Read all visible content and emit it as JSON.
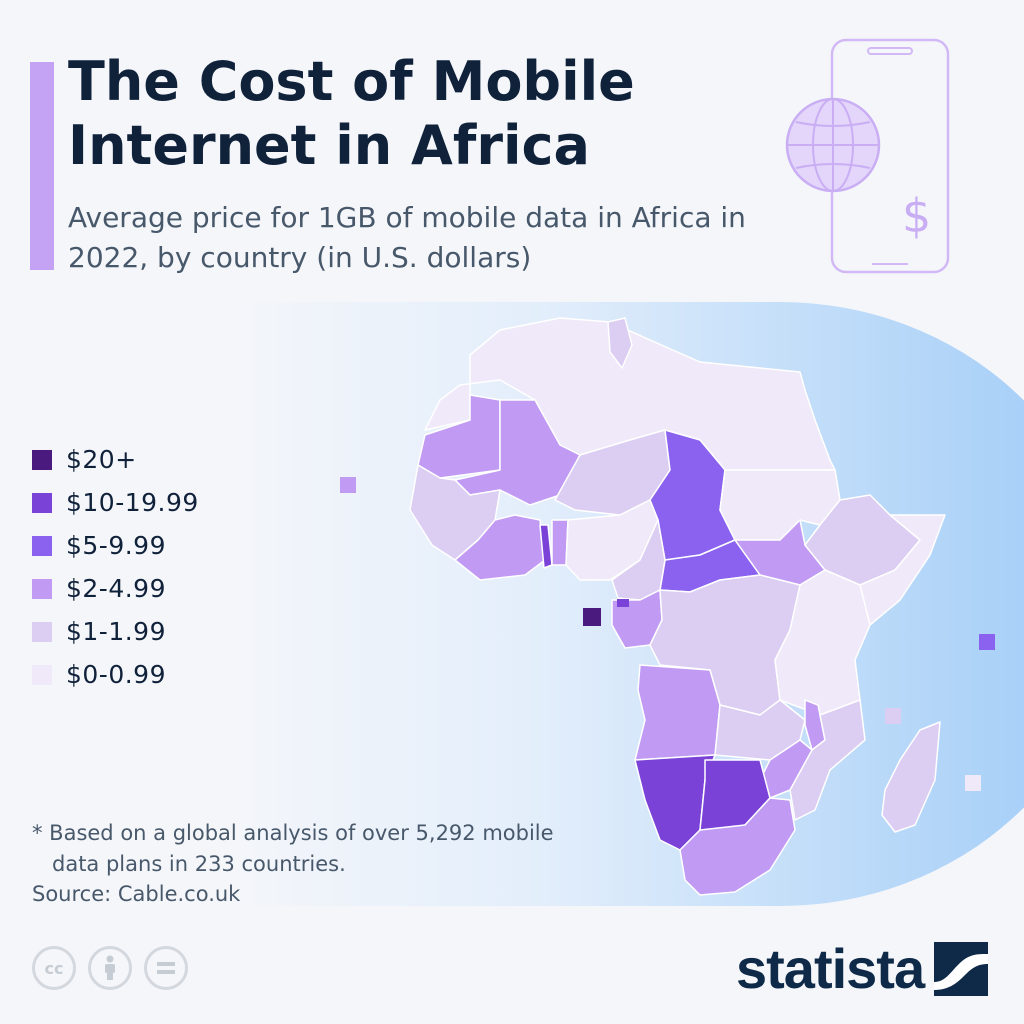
{
  "header": {
    "title": "The Cost of Mobile Internet in Africa",
    "subtitle": "Average price for 1GB of mobile data in Africa in 2022, by country (in U.S. dollars)"
  },
  "colors": {
    "c20plus": "#4a1a7e",
    "c10_19": "#7b42d8",
    "c5_9": "#8a62ef",
    "c2_4": "#c19af4",
    "c1_1": "#dccdf3",
    "c0_0": "#efe9f9",
    "accent": "#c4a3f5",
    "title": "#10213a",
    "brand": "#0f2a49"
  },
  "legend": [
    {
      "label": "$20+",
      "color": "#4a1a7e"
    },
    {
      "label": "$10-19.99",
      "color": "#7b42d8"
    },
    {
      "label": "$5-9.99",
      "color": "#8a62ef"
    },
    {
      "label": "$2-4.99",
      "color": "#c19af4"
    },
    {
      "label": "$1-1.99",
      "color": "#dccdf3"
    },
    {
      "label": "$0-0.99",
      "color": "#efe9f9"
    }
  ],
  "map": {
    "regions": [
      {
        "name": "north-africa",
        "bucket": "$0-0.99"
      },
      {
        "name": "tunisia",
        "bucket": "$1-1.99"
      },
      {
        "name": "mauritania",
        "bucket": "$2-4.99"
      },
      {
        "name": "mali",
        "bucket": "$2-4.99"
      },
      {
        "name": "niger",
        "bucket": "$1-1.99"
      },
      {
        "name": "chad",
        "bucket": "$5-9.99"
      },
      {
        "name": "sudan",
        "bucket": "$0-0.99"
      },
      {
        "name": "central-african-republic",
        "bucket": "$5-9.99"
      },
      {
        "name": "south-sudan",
        "bucket": "$2-4.99"
      },
      {
        "name": "ethiopia",
        "bucket": "$1-1.99"
      },
      {
        "name": "horn-of-africa",
        "bucket": "$0-0.99"
      },
      {
        "name": "west-africa",
        "bucket": "$1-1.99"
      },
      {
        "name": "ivory-coast-ghana",
        "bucket": "$2-4.99"
      },
      {
        "name": "togo",
        "bucket": "$10-19.99"
      },
      {
        "name": "nigeria",
        "bucket": "$0-0.99"
      },
      {
        "name": "cameroon",
        "bucket": "$1-1.99"
      },
      {
        "name": "gabon-congo",
        "bucket": "$2-4.99"
      },
      {
        "name": "dr-congo",
        "bucket": "$1-1.99"
      },
      {
        "name": "east-africa",
        "bucket": "$0-0.99"
      },
      {
        "name": "angola",
        "bucket": "$2-4.99"
      },
      {
        "name": "zambia",
        "bucket": "$1-1.99"
      },
      {
        "name": "malawi",
        "bucket": "$2-4.99"
      },
      {
        "name": "mozambique",
        "bucket": "$1-1.99"
      },
      {
        "name": "zimbabwe",
        "bucket": "$2-4.99"
      },
      {
        "name": "namibia",
        "bucket": "$10-19.99"
      },
      {
        "name": "botswana",
        "bucket": "$10-19.99"
      },
      {
        "name": "south-africa",
        "bucket": "$2-4.99"
      },
      {
        "name": "madagascar",
        "bucket": "$1-1.99"
      },
      {
        "name": "cape-verde",
        "bucket": "$2-4.99"
      },
      {
        "name": "equatorial-guinea-island",
        "bucket": "$20+"
      },
      {
        "name": "seychelles",
        "bucket": "$5-9.99"
      },
      {
        "name": "comoros",
        "bucket": "$1-1.99"
      },
      {
        "name": "mauritius",
        "bucket": "$0-0.99"
      }
    ]
  },
  "footnote": {
    "line1": "* Based on a global analysis of over 5,292 mobile",
    "line2": "data plans in 233 countries."
  },
  "source": "Source: Cable.co.uk",
  "cc_icons": [
    "cc-icon",
    "attribution-icon",
    "no-derivatives-icon"
  ],
  "brand": {
    "name": "statista"
  }
}
